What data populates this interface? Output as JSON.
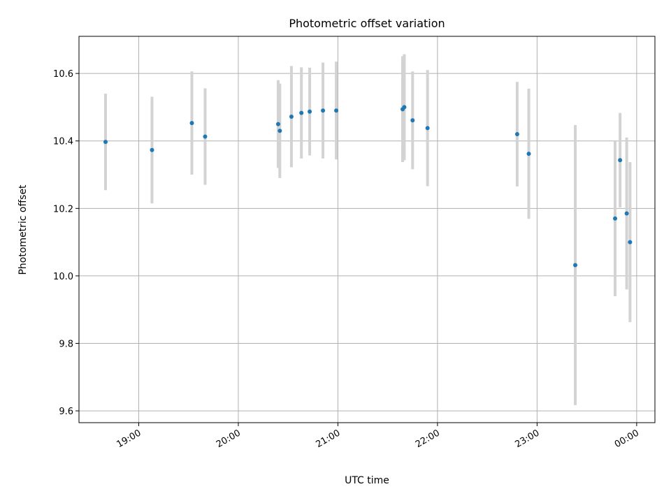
{
  "chart_data": {
    "type": "scatter",
    "title": "Photometric offset variation",
    "xlabel": "UTC time",
    "ylabel": "Photometric offset",
    "x_ticks": [
      "19:00",
      "20:00",
      "21:00",
      "22:00",
      "23:00",
      "00:00"
    ],
    "y_ticks": [
      "9.6",
      "9.8",
      "10.0",
      "10.2",
      "10.4",
      "10.6"
    ],
    "xlim": [
      "18:24",
      "00:11"
    ],
    "ylim": [
      9.565,
      10.71
    ],
    "grid": true,
    "colors": {
      "point": "#1f77b4",
      "errorbar": "#d3d3d3",
      "grid": "#b0b0b0"
    },
    "points": [
      {
        "t": "18:40",
        "y": 10.397,
        "err": 0.143
      },
      {
        "t": "19:08",
        "y": 10.373,
        "err": 0.158
      },
      {
        "t": "19:32",
        "y": 10.453,
        "err": 0.153
      },
      {
        "t": "19:40",
        "y": 10.413,
        "err": 0.143
      },
      {
        "t": "20:24",
        "y": 10.45,
        "err": 0.13
      },
      {
        "t": "20:25",
        "y": 10.43,
        "err": 0.14
      },
      {
        "t": "20:32",
        "y": 10.472,
        "err": 0.15
      },
      {
        "t": "20:38",
        "y": 10.483,
        "err": 0.135
      },
      {
        "t": "20:43",
        "y": 10.487,
        "err": 0.13
      },
      {
        "t": "20:51",
        "y": 10.49,
        "err": 0.142
      },
      {
        "t": "20:59",
        "y": 10.49,
        "err": 0.145
      },
      {
        "t": "21:39",
        "y": 10.494,
        "err": 0.157
      },
      {
        "t": "21:40",
        "y": 10.5,
        "err": 0.157
      },
      {
        "t": "21:45",
        "y": 10.461,
        "err": 0.145
      },
      {
        "t": "21:54",
        "y": 10.438,
        "err": 0.172
      },
      {
        "t": "22:48",
        "y": 10.42,
        "err": 0.155
      },
      {
        "t": "22:55",
        "y": 10.362,
        "err": 0.193
      },
      {
        "t": "23:23",
        "y": 10.032,
        "err": 0.415
      },
      {
        "t": "23:47",
        "y": 10.17,
        "err": 0.23
      },
      {
        "t": "23:50",
        "y": 10.343,
        "err": 0.14
      },
      {
        "t": "23:54",
        "y": 10.185,
        "err": 0.225
      },
      {
        "t": "23:56",
        "y": 10.1,
        "err": 0.237
      }
    ]
  }
}
